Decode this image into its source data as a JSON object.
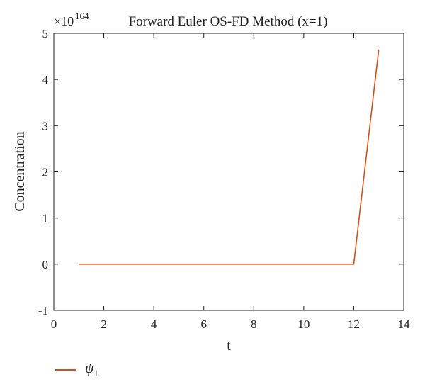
{
  "chart_data": {
    "type": "line",
    "title": "Forward Euler OS-FD Method (x=1)",
    "xlabel": "t",
    "ylabel": "Concentration",
    "y_scale_base": "×10",
    "y_scale_exponent": "164",
    "xlim": [
      0,
      14
    ],
    "ylim": [
      -1,
      5
    ],
    "x_ticks": [
      "0",
      "2",
      "4",
      "6",
      "8",
      "10",
      "12",
      "14"
    ],
    "y_ticks": [
      "-1",
      "0",
      "1",
      "2",
      "3",
      "4",
      "5"
    ],
    "grid": false,
    "legend_position": "bottom-left",
    "series": [
      {
        "name": "ψ1",
        "color": "#d2501e",
        "x": [
          1,
          2,
          3,
          4,
          5,
          6,
          7,
          8,
          9,
          10,
          11,
          12,
          13
        ],
        "y": [
          0,
          0,
          0,
          0,
          0,
          0,
          0,
          0,
          0,
          0,
          0,
          0,
          4.65
        ]
      }
    ]
  },
  "legend": {
    "symbol": "ψ",
    "subscript": "1"
  }
}
